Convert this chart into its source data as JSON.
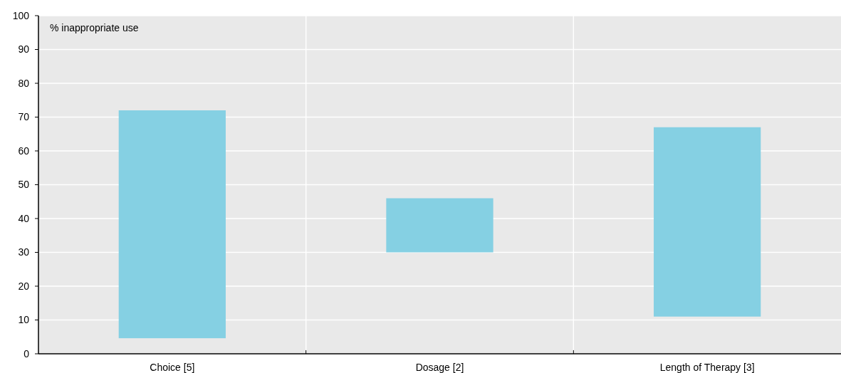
{
  "chart_data": {
    "type": "bar",
    "ylabel": "% inappropriate use",
    "categories": [
      "Choice [5]",
      "Dosage [2]",
      "Length of Therapy [3]"
    ],
    "base": [
      4.6,
      30,
      11
    ],
    "values": [
      67.4,
      16,
      56
    ],
    "color": "#85d0e3",
    "ylim": [
      0,
      100
    ],
    "yticks": [
      0,
      10,
      20,
      30,
      40,
      50,
      60,
      70,
      80,
      90,
      100
    ],
    "grid": true
  }
}
